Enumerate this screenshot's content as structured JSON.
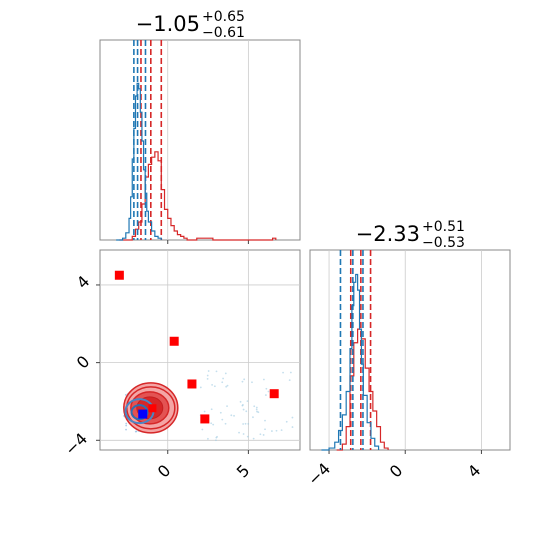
{
  "chart_data": [
    {
      "type": "histogram",
      "panel": "marginal-x",
      "title_main": "−1.05",
      "title_sup": "+0.65",
      "title_sub": "−0.61",
      "xlim": [
        -4.2,
        8.2
      ],
      "grid": true,
      "series": [
        {
          "color": "#d62728",
          "quantiles": [
            -1.66,
            -1.05,
            -0.4
          ],
          "bins": [
            [
              -3.0,
              0
            ],
            [
              -2.5,
              0
            ],
            [
              -2.2,
              0.02
            ],
            [
              -2.0,
              0.06
            ],
            [
              -1.8,
              0.1
            ],
            [
              -1.6,
              0.2
            ],
            [
              -1.4,
              0.35
            ],
            [
              -1.2,
              0.42
            ],
            [
              -1.0,
              0.46
            ],
            [
              -0.8,
              0.49
            ],
            [
              -0.6,
              0.44
            ],
            [
              -0.4,
              0.28
            ],
            [
              -0.2,
              0.17
            ],
            [
              0.0,
              0.12
            ],
            [
              0.2,
              0.08
            ],
            [
              0.4,
              0.05
            ],
            [
              0.6,
              0.03
            ],
            [
              0.8,
              0.02
            ],
            [
              1.0,
              0.01
            ],
            [
              1.2,
              0
            ],
            [
              1.8,
              0.01
            ],
            [
              2.0,
              0.01
            ],
            [
              2.4,
              0.01
            ],
            [
              2.8,
              0
            ],
            [
              6.5,
              0.01
            ],
            [
              6.7,
              0
            ]
          ]
        },
        {
          "color": "#1f77b4",
          "quantiles": [
            -2.1,
            -1.87,
            -1.38
          ],
          "bins": [
            [
              -3.2,
              0
            ],
            [
              -2.8,
              0.01
            ],
            [
              -2.6,
              0.04
            ],
            [
              -2.4,
              0.12
            ],
            [
              -2.3,
              0.24
            ],
            [
              -2.2,
              0.45
            ],
            [
              -2.1,
              0.62
            ],
            [
              -2.0,
              0.8
            ],
            [
              -1.9,
              0.87
            ],
            [
              -1.8,
              0.84
            ],
            [
              -1.7,
              0.71
            ],
            [
              -1.6,
              0.55
            ],
            [
              -1.5,
              0.39
            ],
            [
              -1.4,
              0.26
            ],
            [
              -1.3,
              0.16
            ],
            [
              -1.2,
              0.1
            ],
            [
              -1.0,
              0.05
            ],
            [
              -0.8,
              0.02
            ],
            [
              -0.6,
              0.01
            ],
            [
              -0.4,
              0
            ]
          ]
        }
      ]
    },
    {
      "type": "scatter",
      "panel": "joint",
      "xlim": [
        -4.2,
        8.2
      ],
      "ylim": [
        -4.5,
        5.8
      ],
      "xticks": [
        "0",
        "5"
      ],
      "yticks": [
        "4",
        "0",
        "−4"
      ],
      "grid": true,
      "red_markers": [
        [
          -3.0,
          4.5
        ],
        [
          0.4,
          1.1
        ],
        [
          1.5,
          -1.1
        ],
        [
          2.3,
          -2.9
        ],
        [
          6.6,
          -1.6
        ]
      ],
      "blue_marker": [
        -1.55,
        -2.65
      ],
      "red_marker_in_contour": [
        -0.95,
        -2.35
      ],
      "red_contour_center": [
        -1.05,
        -2.33
      ],
      "blue_contour_center": [
        -1.75,
        -2.5
      ]
    },
    {
      "type": "histogram",
      "panel": "marginal-y",
      "title_main": "−2.33",
      "title_sup": "+0.51",
      "title_sub": "−0.53",
      "xlim": [
        -5.0,
        5.5
      ],
      "xticks": [
        "−4",
        "0",
        "4"
      ],
      "grid": true,
      "series": [
        {
          "color": "#d62728",
          "quantiles": [
            -2.86,
            -2.33,
            -1.82
          ],
          "bins": [
            [
              -3.6,
              0
            ],
            [
              -3.3,
              0.03
            ],
            [
              -3.1,
              0.12
            ],
            [
              -2.9,
              0.38
            ],
            [
              -2.7,
              0.55
            ],
            [
              -2.5,
              0.62
            ],
            [
              -2.3,
              0.57
            ],
            [
              -2.1,
              0.42
            ],
            [
              -1.9,
              0.3
            ],
            [
              -1.7,
              0.2
            ],
            [
              -1.5,
              0.12
            ],
            [
              -1.3,
              0.04
            ],
            [
              -1.1,
              0.01
            ],
            [
              -0.9,
              0
            ]
          ]
        },
        {
          "color": "#1f77b4",
          "quantiles": [
            -3.4,
            -2.75,
            -2.22
          ],
          "bins": [
            [
              -4.4,
              0
            ],
            [
              -4.0,
              0.01
            ],
            [
              -3.7,
              0.04
            ],
            [
              -3.5,
              0.1
            ],
            [
              -3.3,
              0.18
            ],
            [
              -3.1,
              0.3
            ],
            [
              -2.9,
              0.52
            ],
            [
              -2.8,
              0.74
            ],
            [
              -2.7,
              0.86
            ],
            [
              -2.6,
              0.9
            ],
            [
              -2.5,
              0.82
            ],
            [
              -2.4,
              0.62
            ],
            [
              -2.3,
              0.44
            ],
            [
              -2.2,
              0.28
            ],
            [
              -2.0,
              0.14
            ],
            [
              -1.8,
              0.06
            ],
            [
              -1.6,
              0.02
            ],
            [
              -1.4,
              0
            ]
          ]
        }
      ]
    }
  ]
}
